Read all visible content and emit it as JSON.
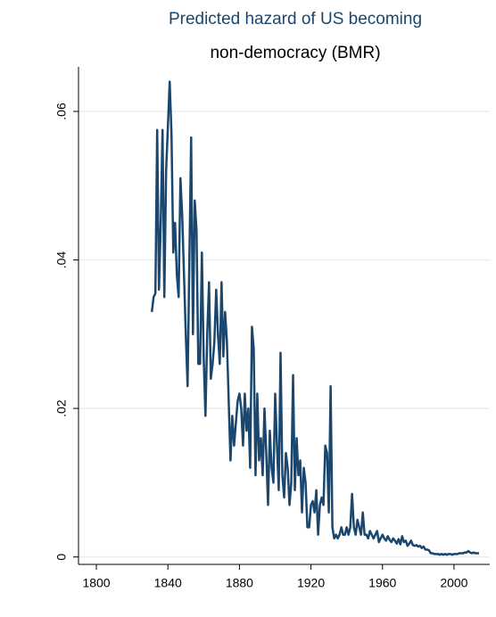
{
  "chart_data": {
    "type": "line",
    "title": "Predicted hazard of US becoming",
    "subtitle": "non-democracy (BMR)",
    "color": "#1a476f",
    "grid": true,
    "xlim": [
      1790,
      2020
    ],
    "ylim": [
      -0.001,
      0.066
    ],
    "xticks": [
      1800,
      1840,
      1880,
      1920,
      1960,
      2000
    ],
    "yticks": [
      0,
      {
        "value": 0.02,
        "label": ".02"
      },
      {
        "value": 0.04,
        "label": ".04"
      },
      {
        "value": 0.06,
        "label": ".06"
      }
    ],
    "x": [
      1831,
      1832,
      1833,
      1834,
      1835,
      1836,
      1837,
      1838,
      1839,
      1840,
      1841,
      1842,
      1843,
      1844,
      1845,
      1846,
      1847,
      1848,
      1849,
      1850,
      1851,
      1852,
      1853,
      1854,
      1855,
      1856,
      1857,
      1858,
      1859,
      1860,
      1861,
      1862,
      1863,
      1864,
      1865,
      1866,
      1867,
      1868,
      1869,
      1870,
      1871,
      1872,
      1873,
      1874,
      1875,
      1876,
      1877,
      1878,
      1879,
      1880,
      1881,
      1882,
      1883,
      1884,
      1885,
      1886,
      1887,
      1888,
      1889,
      1890,
      1891,
      1892,
      1893,
      1894,
      1895,
      1896,
      1897,
      1898,
      1899,
      1900,
      1901,
      1902,
      1903,
      1904,
      1905,
      1906,
      1907,
      1908,
      1909,
      1910,
      1911,
      1912,
      1913,
      1914,
      1915,
      1916,
      1917,
      1918,
      1919,
      1920,
      1921,
      1922,
      1923,
      1924,
      1925,
      1926,
      1927,
      1928,
      1929,
      1930,
      1931,
      1932,
      1933,
      1934,
      1935,
      1936,
      1937,
      1938,
      1939,
      1940,
      1941,
      1942,
      1943,
      1944,
      1945,
      1946,
      1947,
      1948,
      1949,
      1950,
      1951,
      1952,
      1953,
      1954,
      1955,
      1956,
      1957,
      1958,
      1959,
      1960,
      1961,
      1962,
      1963,
      1964,
      1965,
      1966,
      1967,
      1968,
      1969,
      1970,
      1971,
      1972,
      1973,
      1974,
      1975,
      1976,
      1977,
      1978,
      1979,
      1980,
      1981,
      1982,
      1983,
      1984,
      1985,
      1986,
      1987,
      1988,
      1989,
      1990,
      1991,
      1992,
      1993,
      1994,
      1995,
      1996,
      1997,
      1998,
      1999,
      2000,
      2001,
      2002,
      2003,
      2004,
      2005,
      2006,
      2007,
      2008,
      2009,
      2010,
      2011,
      2012,
      2013,
      2014
    ],
    "values": [
      0.033,
      0.035,
      0.0355,
      0.0575,
      0.036,
      0.045,
      0.0575,
      0.035,
      0.052,
      0.058,
      0.064,
      0.057,
      0.041,
      0.045,
      0.038,
      0.035,
      0.051,
      0.046,
      0.038,
      0.03,
      0.023,
      0.04,
      0.0565,
      0.03,
      0.048,
      0.044,
      0.026,
      0.026,
      0.041,
      0.027,
      0.019,
      0.03,
      0.037,
      0.024,
      0.026,
      0.029,
      0.036,
      0.03,
      0.026,
      0.037,
      0.027,
      0.033,
      0.029,
      0.021,
      0.013,
      0.019,
      0.015,
      0.018,
      0.021,
      0.022,
      0.02,
      0.015,
      0.022,
      0.017,
      0.02,
      0.012,
      0.031,
      0.028,
      0.011,
      0.022,
      0.013,
      0.016,
      0.011,
      0.02,
      0.014,
      0.007,
      0.017,
      0.012,
      0.01,
      0.022,
      0.015,
      0.009,
      0.0275,
      0.011,
      0.008,
      0.014,
      0.012,
      0.007,
      0.01,
      0.0245,
      0.009,
      0.016,
      0.011,
      0.013,
      0.006,
      0.012,
      0.01,
      0.004,
      0.004,
      0.007,
      0.0075,
      0.006,
      0.009,
      0.003,
      0.007,
      0.008,
      0.007,
      0.015,
      0.014,
      0.006,
      0.023,
      0.004,
      0.0025,
      0.003,
      0.0025,
      0.003,
      0.004,
      0.003,
      0.003,
      0.004,
      0.003,
      0.004,
      0.0085,
      0.004,
      0.003,
      0.005,
      0.004,
      0.003,
      0.006,
      0.003,
      0.003,
      0.0025,
      0.0035,
      0.003,
      0.0025,
      0.003,
      0.0035,
      0.002,
      0.0025,
      0.003,
      0.0025,
      0.0022,
      0.0028,
      0.0023,
      0.002,
      0.0025,
      0.0022,
      0.0018,
      0.0024,
      0.0017,
      0.0028,
      0.002,
      0.0022,
      0.0015,
      0.0018,
      0.0022,
      0.0016,
      0.0015,
      0.0016,
      0.0014,
      0.0015,
      0.0012,
      0.0014,
      0.001,
      0.001,
      0.0009,
      0.0005,
      0.0005,
      0.0004,
      0.0004,
      0.0004,
      0.0003,
      0.0004,
      0.0003,
      0.0004,
      0.0003,
      0.0004,
      0.0004,
      0.0003,
      0.0004,
      0.0004,
      0.0004,
      0.0005,
      0.0005,
      0.0005,
      0.0006,
      0.0006,
      0.0008,
      0.0006,
      0.0005,
      0.0006,
      0.0005,
      0.0005,
      0.0005
    ]
  }
}
